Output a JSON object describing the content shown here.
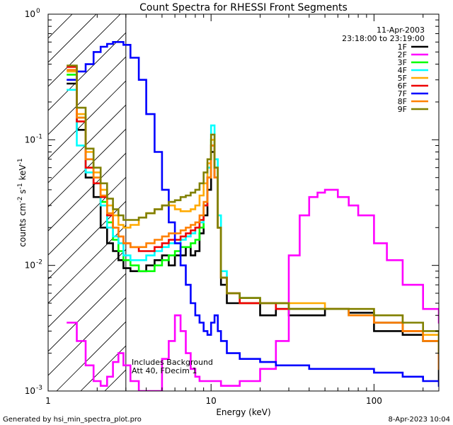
{
  "chart_data": {
    "type": "line",
    "title": "Count Spectra for RHESSI Front Segments",
    "xlabel": "Energy (keV)",
    "ylabel_parts": {
      "base": "counts cm",
      "exp1": "-2",
      "mid1": " s",
      "exp2": "-1",
      "mid2": " keV",
      "exp3": "-1"
    },
    "xscale": "log",
    "yscale": "log",
    "xlim": [
      1,
      250
    ],
    "ylim": [
      0.001,
      1
    ],
    "x_ticks": [
      {
        "value": 1,
        "label": "1"
      },
      {
        "value": 10,
        "label": "10"
      },
      {
        "value": 100,
        "label": "100"
      }
    ],
    "y_ticks": [
      {
        "value": 1,
        "base": "10",
        "exp": "0"
      },
      {
        "value": 0.1,
        "base": "10",
        "exp": "-1"
      },
      {
        "value": 0.01,
        "base": "10",
        "exp": "-2"
      },
      {
        "value": 0.001,
        "base": "10",
        "exp": "-3"
      }
    ],
    "date_label": "11-Apr-2003",
    "time_range_label": "23:18:00 to 23:19:00",
    "annotation_lines": [
      "Includes Background",
      "Att 40, FDecim 1"
    ],
    "hatched_region_end_keV": 3,
    "legend_position": "top-right",
    "series": [
      {
        "name": "1F",
        "color": "#000000",
        "x": [
          1.3,
          1.5,
          1.7,
          1.9,
          2.1,
          2.3,
          2.5,
          2.7,
          2.9,
          3.2,
          3.6,
          4.0,
          4.5,
          5.0,
          5.5,
          6.0,
          6.5,
          7.0,
          7.5,
          8.0,
          8.5,
          9.0,
          9.5,
          10.0,
          10.5,
          11.0,
          11.5,
          12.5,
          15,
          20,
          25,
          30,
          40,
          50,
          70,
          100,
          150,
          200,
          250
        ],
        "y": [
          0.28,
          0.12,
          0.05,
          0.035,
          0.02,
          0.015,
          0.013,
          0.011,
          0.0095,
          0.009,
          0.009,
          0.01,
          0.011,
          0.012,
          0.01,
          0.012,
          0.012,
          0.014,
          0.012,
          0.013,
          0.018,
          0.025,
          0.04,
          0.08,
          0.05,
          0.02,
          0.007,
          0.005,
          0.005,
          0.004,
          0.0045,
          0.004,
          0.004,
          0.0045,
          0.0042,
          0.003,
          0.0028,
          0.0025,
          0.0012
        ]
      },
      {
        "name": "2F",
        "color": "#ff00ff",
        "x": [
          1.3,
          1.5,
          1.7,
          1.9,
          2.1,
          2.3,
          2.5,
          2.7,
          2.9,
          3.2,
          3.6,
          4.0,
          4.5,
          5.0,
          5.5,
          6.0,
          6.5,
          7.0,
          7.5,
          8.0,
          8.5,
          9.0,
          9.5,
          10.0,
          10.5,
          11.0,
          11.5,
          12,
          15,
          20,
          25,
          30,
          35,
          40,
          45,
          50,
          60,
          70,
          80,
          100,
          120,
          150,
          200,
          250
        ],
        "y": [
          0.0035,
          0.0025,
          0.0016,
          0.0012,
          0.0011,
          0.0013,
          0.0017,
          0.002,
          0.0016,
          0.0012,
          0.001,
          0.001,
          0.001,
          0.0018,
          0.0025,
          0.004,
          0.003,
          0.002,
          0.0015,
          0.0013,
          0.0012,
          0.0012,
          0.0012,
          0.0012,
          0.0012,
          0.0012,
          0.0011,
          0.0011,
          0.0012,
          0.0015,
          0.0025,
          0.012,
          0.025,
          0.035,
          0.038,
          0.04,
          0.035,
          0.03,
          0.025,
          0.015,
          0.011,
          0.007,
          0.0045,
          0.0035
        ]
      },
      {
        "name": "3F",
        "color": "#00ff00",
        "x": [
          1.3,
          1.5,
          1.7,
          1.9,
          2.1,
          2.3,
          2.5,
          2.7,
          2.9,
          3.2,
          3.6,
          4.0,
          4.5,
          5.0,
          5.5,
          6.0,
          6.5,
          7.0,
          7.5,
          8.0,
          8.5,
          9.0,
          9.5,
          10.0,
          10.5,
          11.0,
          11.5,
          12.5,
          15,
          20,
          25,
          30,
          40,
          50,
          70,
          100,
          150,
          200,
          250
        ],
        "y": [
          0.33,
          0.15,
          0.07,
          0.05,
          0.032,
          0.022,
          0.016,
          0.013,
          0.011,
          0.01,
          0.009,
          0.009,
          0.01,
          0.011,
          0.012,
          0.013,
          0.014,
          0.014,
          0.015,
          0.016,
          0.02,
          0.03,
          0.05,
          0.1,
          0.06,
          0.02,
          0.008,
          0.006,
          0.0055,
          0.005,
          0.005,
          0.0045,
          0.0045,
          0.0045,
          0.004,
          0.0035,
          0.003,
          0.0025,
          0.0015
        ]
      },
      {
        "name": "4F",
        "color": "#00ffff",
        "x": [
          1.3,
          1.5,
          1.7,
          1.9,
          2.1,
          2.3,
          2.5,
          2.7,
          2.9,
          3.2,
          3.6,
          4.0,
          4.5,
          5.0,
          5.5,
          6.0,
          6.5,
          7.0,
          7.5,
          8.0,
          8.5,
          9.0,
          9.5,
          10.0,
          10.5,
          11.0,
          11.5,
          12.5,
          15,
          20,
          25,
          30,
          40,
          50,
          70,
          100,
          150,
          200,
          250
        ],
        "y": [
          0.25,
          0.09,
          0.055,
          0.045,
          0.03,
          0.02,
          0.017,
          0.015,
          0.012,
          0.011,
          0.011,
          0.012,
          0.013,
          0.014,
          0.015,
          0.015,
          0.016,
          0.017,
          0.018,
          0.02,
          0.022,
          0.03,
          0.06,
          0.13,
          0.07,
          0.025,
          0.009,
          0.006,
          0.0055,
          0.005,
          0.0045,
          0.0045,
          0.0045,
          0.0045,
          0.004,
          0.0035,
          0.003,
          0.0025,
          0.0015
        ]
      },
      {
        "name": "5F",
        "color": "#ffaa00",
        "x": [
          1.3,
          1.5,
          1.7,
          1.9,
          2.1,
          2.3,
          2.5,
          2.7,
          2.9,
          3.2,
          3.6,
          4.0,
          4.5,
          5.0,
          5.5,
          6.0,
          6.5,
          7.0,
          7.5,
          8.0,
          8.5,
          9.0,
          9.5,
          10.0,
          10.5,
          11.0,
          11.5,
          12.5,
          15,
          20,
          25,
          30,
          40,
          50,
          70,
          100,
          150,
          200,
          250
        ],
        "y": [
          0.35,
          0.16,
          0.08,
          0.055,
          0.04,
          0.03,
          0.025,
          0.021,
          0.02,
          0.021,
          0.024,
          0.026,
          0.028,
          0.03,
          0.03,
          0.028,
          0.027,
          0.027,
          0.028,
          0.03,
          0.036,
          0.045,
          0.065,
          0.1,
          0.06,
          0.02,
          0.008,
          0.006,
          0.005,
          0.005,
          0.005,
          0.005,
          0.005,
          0.0045,
          0.0045,
          0.004,
          0.003,
          0.0028,
          0.0018
        ]
      },
      {
        "name": "6F",
        "color": "#ee0000",
        "x": [
          1.3,
          1.5,
          1.7,
          1.9,
          2.1,
          2.3,
          2.5,
          2.7,
          2.9,
          3.2,
          3.6,
          4.0,
          4.5,
          5.0,
          5.5,
          6.0,
          6.5,
          7.0,
          7.5,
          8.0,
          8.5,
          9.0,
          9.5,
          10.0,
          10.5,
          11.0,
          11.5,
          12.5,
          15,
          20,
          25,
          30,
          40,
          50,
          70,
          100,
          150,
          200,
          250
        ],
        "y": [
          0.38,
          0.14,
          0.06,
          0.045,
          0.035,
          0.025,
          0.02,
          0.017,
          0.015,
          0.014,
          0.013,
          0.013,
          0.014,
          0.015,
          0.016,
          0.016,
          0.017,
          0.018,
          0.019,
          0.02,
          0.023,
          0.03,
          0.05,
          0.09,
          0.05,
          0.02,
          0.008,
          0.006,
          0.005,
          0.005,
          0.0045,
          0.0045,
          0.0045,
          0.0045,
          0.004,
          0.0035,
          0.003,
          0.0025,
          0.0015
        ]
      },
      {
        "name": "7F",
        "color": "#0000ff",
        "x": [
          1.3,
          1.5,
          1.7,
          1.9,
          2.1,
          2.3,
          2.5,
          2.7,
          2.9,
          3.2,
          3.6,
          4.0,
          4.5,
          5.0,
          5.5,
          6.0,
          6.5,
          7.0,
          7.5,
          8.0,
          8.5,
          9.0,
          9.5,
          10.0,
          10.5,
          11.0,
          11.5,
          12.5,
          15,
          20,
          25,
          30,
          40,
          50,
          70,
          100,
          150,
          200,
          250
        ],
        "y": [
          0.3,
          0.35,
          0.4,
          0.5,
          0.55,
          0.58,
          0.6,
          0.6,
          0.57,
          0.45,
          0.3,
          0.16,
          0.08,
          0.04,
          0.022,
          0.015,
          0.01,
          0.007,
          0.005,
          0.004,
          0.0035,
          0.003,
          0.0028,
          0.0035,
          0.004,
          0.003,
          0.0025,
          0.002,
          0.0018,
          0.0017,
          0.0016,
          0.0016,
          0.0015,
          0.0015,
          0.0015,
          0.0014,
          0.0013,
          0.0012,
          0.0011
        ]
      },
      {
        "name": "8F",
        "color": "#ff8000",
        "x": [
          1.3,
          1.5,
          1.7,
          1.9,
          2.1,
          2.3,
          2.5,
          2.7,
          2.9,
          3.2,
          3.6,
          4.0,
          4.5,
          5.0,
          5.5,
          6.0,
          6.5,
          7.0,
          7.5,
          8.0,
          8.5,
          9.0,
          9.5,
          10.0,
          10.5,
          11.0,
          11.5,
          12.5,
          15,
          20,
          25,
          30,
          40,
          50,
          70,
          100,
          150,
          200,
          250
        ],
        "y": [
          0.36,
          0.15,
          0.07,
          0.05,
          0.036,
          0.026,
          0.02,
          0.017,
          0.015,
          0.014,
          0.014,
          0.015,
          0.016,
          0.017,
          0.018,
          0.018,
          0.019,
          0.02,
          0.021,
          0.022,
          0.025,
          0.032,
          0.05,
          0.09,
          0.05,
          0.02,
          0.008,
          0.006,
          0.0055,
          0.005,
          0.005,
          0.0045,
          0.0045,
          0.0045,
          0.004,
          0.0035,
          0.003,
          0.0025,
          0.0015
        ]
      },
      {
        "name": "9F",
        "color": "#808000",
        "x": [
          1.3,
          1.5,
          1.7,
          1.9,
          2.1,
          2.3,
          2.5,
          2.7,
          2.9,
          3.2,
          3.6,
          4.0,
          4.5,
          5.0,
          5.5,
          6.0,
          6.5,
          7.0,
          7.5,
          8.0,
          8.5,
          9.0,
          9.5,
          10.0,
          10.5,
          11.0,
          11.5,
          12.5,
          15,
          20,
          25,
          30,
          40,
          50,
          70,
          100,
          150,
          200,
          250
        ],
        "y": [
          0.39,
          0.18,
          0.085,
          0.06,
          0.045,
          0.034,
          0.028,
          0.025,
          0.023,
          0.023,
          0.024,
          0.026,
          0.028,
          0.03,
          0.032,
          0.033,
          0.035,
          0.036,
          0.038,
          0.04,
          0.045,
          0.055,
          0.07,
          0.11,
          0.06,
          0.02,
          0.008,
          0.006,
          0.0055,
          0.005,
          0.005,
          0.0045,
          0.0045,
          0.0045,
          0.0045,
          0.004,
          0.0035,
          0.003,
          0.002
        ]
      }
    ]
  },
  "footer": {
    "generated_by": "Generated by hsi_min_spectra_plot.pro",
    "generated_date": "8-Apr-2023 10:04"
  }
}
